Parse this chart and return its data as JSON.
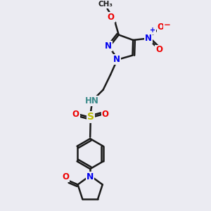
{
  "bg_color": "#ebebf2",
  "bond_color": "#1a1a1a",
  "bond_width": 1.8,
  "atom_colors": {
    "N": "#0000ee",
    "O": "#ee0000",
    "S": "#bbbb00",
    "NH": "#3a8a8a",
    "C": "#1a1a1a"
  },
  "layout": {
    "xlim": [
      0,
      10
    ],
    "ylim": [
      0,
      10
    ],
    "figsize": [
      3.0,
      3.0
    ],
    "dpi": 100
  }
}
